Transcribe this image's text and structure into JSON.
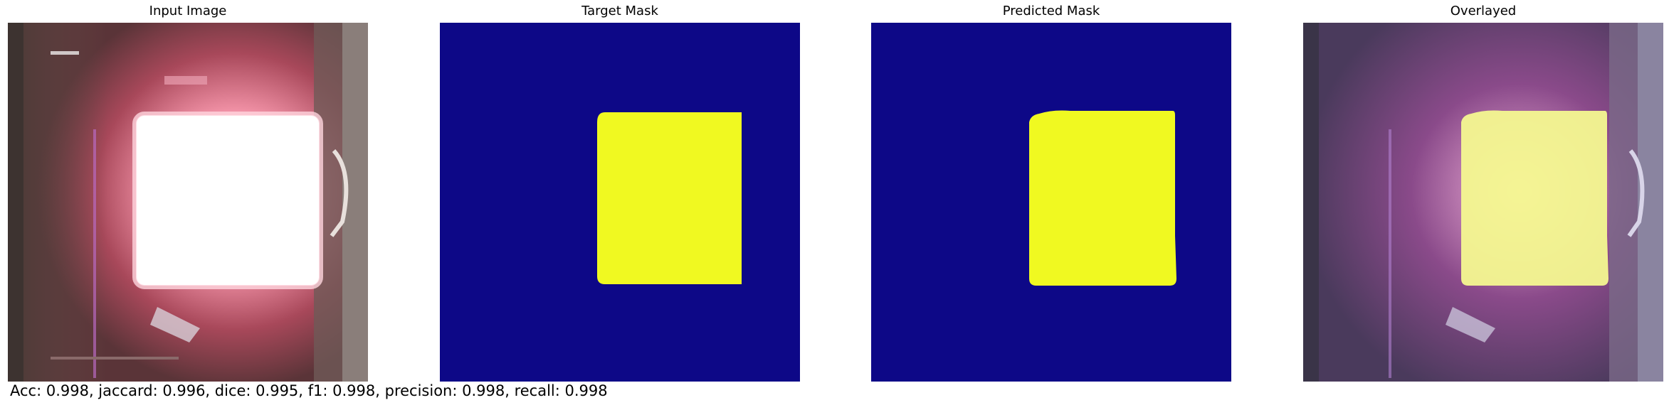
{
  "panels": [
    {
      "title": "Input Image"
    },
    {
      "title": "Target Mask"
    },
    {
      "title": "Predicted Mask"
    },
    {
      "title": "Overlayed"
    }
  ],
  "colors": {
    "mask_background": "#0d0887",
    "mask_foreground": "#f0f921"
  },
  "metrics": {
    "text": "Acc: 0.998, jaccard: 0.996, dice: 0.995, f1: 0.998, precision: 0.998, recall: 0.998"
  }
}
